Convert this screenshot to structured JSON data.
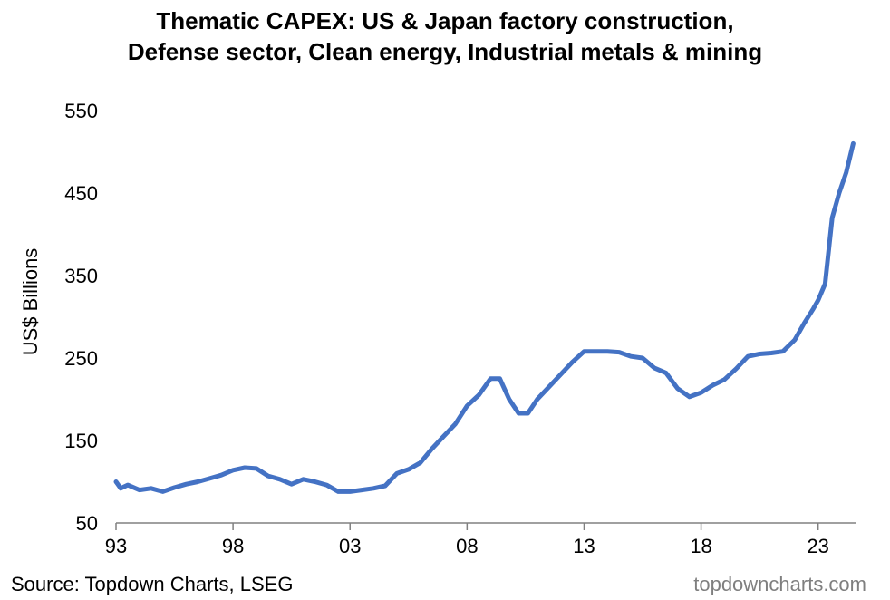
{
  "chart_data": {
    "type": "line",
    "title_line1": "Thematic CAPEX: US & Japan factory construction,",
    "title_line2": "Defense sector, Clean energy, Industrial metals & mining",
    "ylabel": "US$ Billions",
    "xlabel": "",
    "ylim": [
      50,
      550
    ],
    "xlim": [
      1993,
      2024.6
    ],
    "yticks": [
      50,
      150,
      250,
      350,
      450,
      550
    ],
    "xticks": [
      1993,
      1998,
      2003,
      2008,
      2013,
      2018,
      2023
    ],
    "xtick_labels": [
      "93",
      "98",
      "03",
      "08",
      "13",
      "18",
      "23"
    ],
    "grid": false,
    "legend": "none",
    "series": [
      {
        "color": "#4472C4",
        "x": [
          1993.0,
          1993.2,
          1993.5,
          1994.0,
          1994.5,
          1995.0,
          1995.5,
          1996.0,
          1996.5,
          1997.0,
          1997.5,
          1998.0,
          1998.5,
          1999.0,
          1999.5,
          2000.0,
          2000.5,
          2001.0,
          2001.5,
          2002.0,
          2002.5,
          2003.0,
          2003.5,
          2004.0,
          2004.5,
          2005.0,
          2005.5,
          2006.0,
          2006.5,
          2007.0,
          2007.5,
          2008.0,
          2008.5,
          2009.0,
          2009.4,
          2009.8,
          2010.2,
          2010.6,
          2011.0,
          2011.5,
          2012.0,
          2012.5,
          2013.0,
          2013.5,
          2014.0,
          2014.5,
          2015.0,
          2015.5,
          2016.0,
          2016.5,
          2017.0,
          2017.5,
          2018.0,
          2018.5,
          2019.0,
          2019.5,
          2020.0,
          2020.5,
          2021.0,
          2021.5,
          2022.0,
          2022.4,
          2022.8,
          2023.0,
          2023.3,
          2023.6,
          2023.9,
          2024.2,
          2024.5
        ],
        "y": [
          100,
          92,
          96,
          90,
          92,
          88,
          93,
          97,
          100,
          104,
          108,
          114,
          117,
          116,
          107,
          103,
          97,
          103,
          100,
          96,
          88,
          88,
          90,
          92,
          95,
          110,
          115,
          123,
          140,
          155,
          170,
          192,
          205,
          225,
          225,
          200,
          183,
          183,
          200,
          215,
          230,
          245,
          258,
          258,
          258,
          257,
          252,
          250,
          238,
          232,
          213,
          203,
          208,
          217,
          224,
          237,
          252,
          255,
          256,
          258,
          272,
          292,
          310,
          320,
          340,
          420,
          450,
          475,
          510
        ]
      }
    ],
    "source": "Source: Topdown Charts, LSEG",
    "brand": "topdowncharts.com"
  }
}
